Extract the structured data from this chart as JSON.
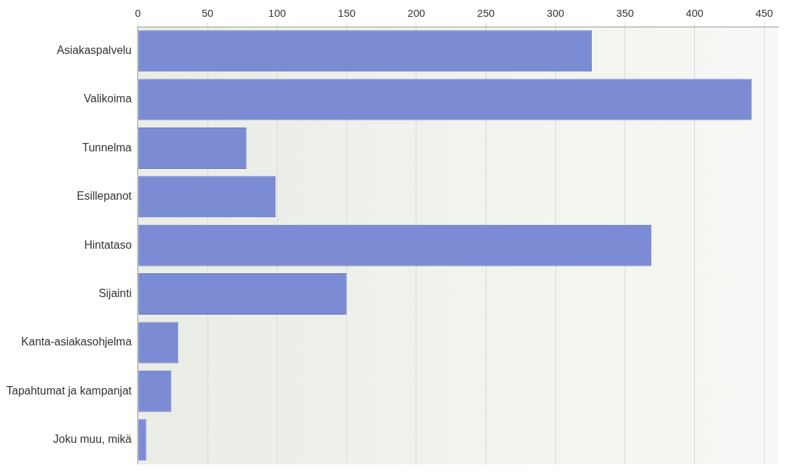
{
  "chart_data": {
    "type": "bar",
    "orientation": "horizontal",
    "categories": [
      "Asiakaspalvelu",
      "Valikoima",
      "Tunnelma",
      "Esillepanot",
      "Hintataso",
      "Sijainti",
      "Kanta-asiakasohjelma",
      "Tapahtumat ja kampanjat",
      "Joku muu, mikä"
    ],
    "values": [
      326,
      441,
      78,
      99,
      369,
      150,
      29,
      24,
      6
    ],
    "color": "#7b8bd4",
    "xlim": [
      0,
      460
    ],
    "xticks": [
      0,
      50,
      100,
      150,
      200,
      250,
      300,
      350,
      400,
      450
    ],
    "grid": "x"
  }
}
